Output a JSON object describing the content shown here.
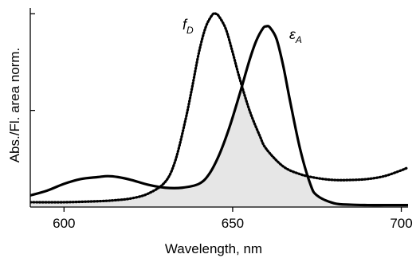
{
  "chart_data": {
    "type": "line",
    "title": "",
    "xlabel": "Wavelength, nm",
    "ylabel": "Abs./Fl. area norm.",
    "xlim": [
      590,
      702
    ],
    "ylim": [
      0,
      1.03
    ],
    "x_ticks": [
      600,
      650,
      700
    ],
    "x_tick_labels": [
      "600",
      "650",
      "700"
    ],
    "y_ticks": [
      0.5,
      1.0
    ],
    "grid": false,
    "legend": "none",
    "overlap_shaded": true,
    "overlap_fill_color": "#e6e6e6",
    "series": [
      {
        "label_main": "f",
        "label_sub": "D",
        "style": "dotted",
        "color": "#000000",
        "x": [
          590,
          600,
          610,
          615,
          620,
          625,
          630,
          633,
          636,
          638,
          640,
          642,
          644,
          645,
          646,
          648,
          650,
          652,
          655,
          658,
          660,
          665,
          670,
          675,
          680,
          685,
          690,
          695,
          700,
          702
        ],
        "y": [
          0.025,
          0.025,
          0.03,
          0.035,
          0.045,
          0.07,
          0.13,
          0.24,
          0.45,
          0.62,
          0.8,
          0.93,
          0.995,
          1.0,
          0.985,
          0.92,
          0.8,
          0.67,
          0.5,
          0.37,
          0.3,
          0.21,
          0.17,
          0.15,
          0.14,
          0.14,
          0.145,
          0.16,
          0.19,
          0.205
        ]
      },
      {
        "label_main": "ε",
        "label_sub": "A",
        "style": "solid",
        "color": "#000000",
        "x": [
          590,
          595,
          600,
          605,
          610,
          613,
          616,
          620,
          625,
          630,
          635,
          640,
          643,
          646,
          649,
          652,
          655,
          657,
          659,
          660,
          661,
          663,
          665,
          667,
          670,
          673,
          675,
          680,
          685,
          690,
          695,
          700,
          702
        ],
        "y": [
          0.06,
          0.085,
          0.12,
          0.145,
          0.155,
          0.16,
          0.155,
          0.14,
          0.115,
          0.1,
          0.1,
          0.12,
          0.17,
          0.27,
          0.41,
          0.58,
          0.76,
          0.86,
          0.925,
          0.935,
          0.93,
          0.87,
          0.73,
          0.55,
          0.3,
          0.12,
          0.06,
          0.02,
          0.012,
          0.01,
          0.01,
          0.01,
          0.01
        ]
      }
    ]
  }
}
